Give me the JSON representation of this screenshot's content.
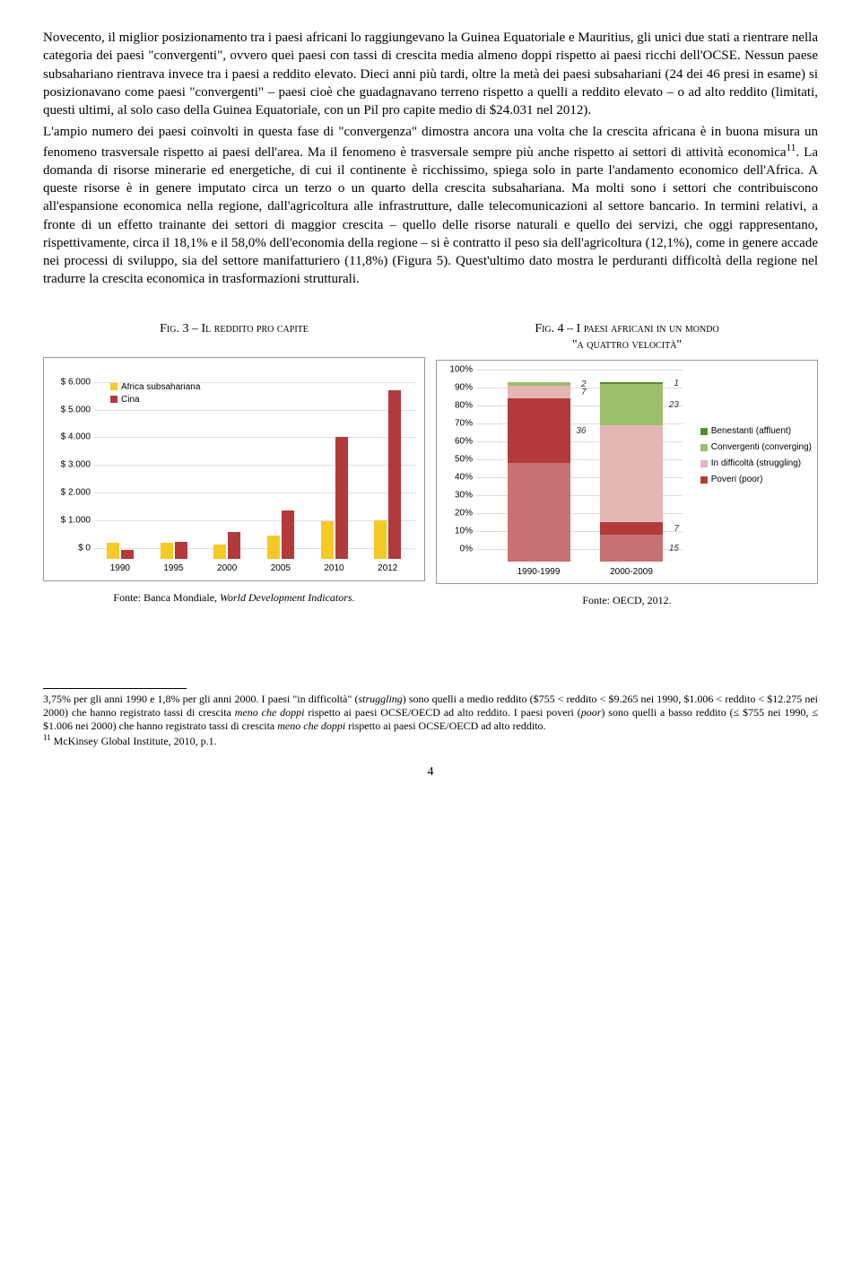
{
  "paragraphs": {
    "p1": "Novecento, il miglior posizionamento tra i paesi africani lo raggiungevano la Guinea Equatoriale e Mauritius, gli unici due stati a rientrare nella categoria dei paesi \"convergenti\", ovvero quei paesi con tassi di crescita media almeno doppi rispetto ai paesi ricchi dell'OCSE. Nessun paese subsahariano rientrava invece tra i paesi a reddito elevato. Dieci anni più tardi, oltre la metà dei paesi subsahariani (24 dei 46 presi in esame) si posizionavano come paesi \"convergenti\" – paesi cioè che guadagnavano terreno rispetto a quelli a reddito elevato – o ad alto reddito (limitati, questi ultimi, al solo caso della Guinea Equatoriale, con un Pil pro capite medio di $24.031 nel 2012).",
    "p2_a": "L'ampio numero dei paesi coinvolti in questa fase di \"convergenza\" dimostra ancora una volta che la crescita africana è in buona misura un fenomeno trasversale rispetto ai paesi dell'area. Ma il fenomeno è trasversale sempre più anche rispetto ai settori di attività economica",
    "p2_b": ". La domanda di risorse minerarie ed energetiche, di cui il continente è ricchissimo, spiega solo in parte l'andamento economico dell'Africa. A queste risorse è in genere imputato circa un terzo o un quarto della crescita subsahariana. Ma molti sono i settori che contribuiscono all'espansione economica nella regione, dall'agricoltura alle infrastrutture, dalle telecomunicazioni al settore bancario. In termini relativi, a fronte di un effetto trainante dei settori di maggior crescita – quello delle risorse naturali e quello dei servizi, che oggi rappresentano, rispettivamente, circa il 18,1% e il 58,0% dell'economia della regione – si è contratto il peso sia dell'agricoltura (12,1%), come in genere accade nei processi di sviluppo, sia del settore manifatturiero (11,8%) (Figura 5). Quest'ultimo dato mostra le perduranti difficoltà della regione nel tradurre la crescita economica in trasformazioni strutturali.",
    "sup11": "11"
  },
  "fig3": {
    "title": "Fig. 3 – Il reddito pro capite",
    "legend": [
      {
        "label": "Africa subsahariana",
        "color": "#f5c926"
      },
      {
        "label": "Cina",
        "color": "#b23a3a"
      }
    ],
    "ymax": 6500,
    "ylabels": [
      "$ 6.000",
      "$ 5.000",
      "$ 4.000",
      "$ 3.000",
      "$ 2.000",
      "$ 1.000",
      "$ 0"
    ],
    "yvalues": [
      6000,
      5000,
      4000,
      3000,
      2000,
      1000,
      0
    ],
    "categories": [
      "1990",
      "1995",
      "2000",
      "2005",
      "2010",
      "2012"
    ],
    "series_africa": [
      560,
      560,
      510,
      820,
      1350,
      1380
    ],
    "series_cina": [
      320,
      600,
      950,
      1750,
      4400,
      6100
    ],
    "colors": {
      "africa": "#f5c926",
      "cina": "#b23a3a"
    },
    "source_a": "Fonte: Banca Mondiale, ",
    "source_b": "World Development Indicators."
  },
  "fig4": {
    "title_a": "Fig. 4 – I paesi africani in un mondo",
    "title_b": "\"a quattro velocità\"",
    "ylabels": [
      "100%",
      "90%",
      "80%",
      "70%",
      "60%",
      "50%",
      "40%",
      "30%",
      "20%",
      "10%",
      "0%"
    ],
    "yvalues": [
      100,
      90,
      80,
      70,
      60,
      50,
      40,
      30,
      20,
      10,
      0
    ],
    "bars": [
      {
        "xlabel": "1990-1999",
        "segments": [
          {
            "value": 55,
            "label": "",
            "color": "#c67272"
          },
          {
            "value": 36,
            "label": "36",
            "color": "#b23a3a"
          },
          {
            "value": 7,
            "label": "7",
            "color": "#e4b6b6"
          },
          {
            "value": 2,
            "label": "2",
            "color": "#9cbf6e"
          }
        ]
      },
      {
        "xlabel": "2000-2009",
        "segments": [
          {
            "value": 15,
            "label": "15",
            "color": "#c67272"
          },
          {
            "value": 7,
            "label": "7",
            "color": "#b23a3a"
          },
          {
            "value": 54,
            "label": "",
            "color": "#e4b6b6"
          },
          {
            "value": 23,
            "label": "23",
            "color": "#9cbf6e"
          },
          {
            "value": 1,
            "label": "1",
            "color": "#5a8a2e"
          }
        ]
      }
    ],
    "legend": [
      {
        "label": "Benestanti (affluent)",
        "color": "#5a8a2e"
      },
      {
        "label": "Convergenti (converging)",
        "color": "#9cbf6e"
      },
      {
        "label": "In difficoltà (struggling)",
        "color": "#e4b6b6"
      },
      {
        "label": "Poveri (poor)",
        "color": "#b23a3a"
      }
    ],
    "source": "Fonte: OECD, 2012."
  },
  "footnotes": {
    "f_cont": "3,75% per gli anni 1990 e 1,8% per gli anni 2000. I paesi \"in difficoltà\" (",
    "f_struggling": "struggling",
    "f_cont2": ") sono quelli a medio reddito ($755 < reddito < $9.265 nei 1990, $1.006 < reddito < $12.275 nei 2000) che hanno registrato tassi di crescita ",
    "f_meno": "meno che doppi",
    "f_cont3": " rispetto ai paesi OCSE/OECD ad alto reddito. I paesi poveri (",
    "f_poor": "poor",
    "f_cont4": ") sono quelli a basso reddito (≤ $755 nei 1990, ≤ $1.006 nei 2000) che hanno registrato tassi di crescita ",
    "f_meno2": "meno che doppi",
    "f_cont5": " rispetto ai paesi OCSE/OECD ad alto reddito.",
    "f11": "11",
    "f11_text": " McKinsey Global Institute, 2010, p.1."
  },
  "page_num": "4"
}
